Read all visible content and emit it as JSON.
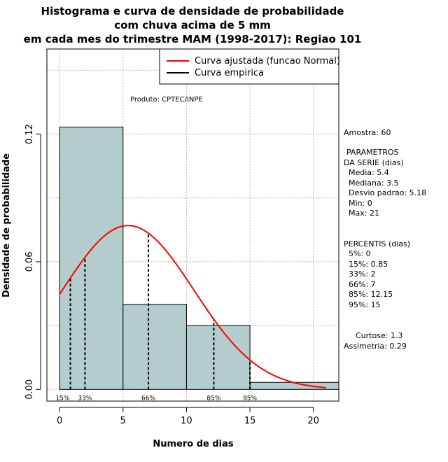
{
  "chart_data": {
    "type": "bar",
    "title_lines": [
      "Histograma e curva de densidade de probabilidade",
      "com chuva acima de 5 mm",
      "em cada mes do trimestre MAM (1998-2017): Regiao 101"
    ],
    "xlabel": "Numero de dias",
    "ylabel": "Densidade de probabilidade",
    "xlim": [
      -1,
      22
    ],
    "ylim": [
      -0.0055,
      0.16
    ],
    "x_ticks": [
      0,
      5,
      10,
      15,
      20
    ],
    "y_ticks": [
      0.0,
      0.06,
      0.12
    ],
    "y_tick_labels": [
      "0.00",
      "0.06",
      "0.12"
    ],
    "grid": true,
    "bins": [
      {
        "start": 0,
        "end": 5,
        "density": 0.1233
      },
      {
        "start": 5,
        "end": 10,
        "density": 0.04
      },
      {
        "start": 10,
        "end": 15,
        "density": 0.03
      },
      {
        "start": 15,
        "end": 22,
        "density": 0.0033
      }
    ],
    "bar_color": "#b5cccc",
    "series": [
      {
        "name": "Curva ajustada (funcao Normal)",
        "color": "#ff0000",
        "distribution": "normal",
        "mean": 5.4,
        "sd": 5.18,
        "x_range": [
          0,
          21
        ]
      },
      {
        "name": "Curva empirica",
        "color": "#000000"
      }
    ],
    "percentile_lines": [
      {
        "label": "15%",
        "x": 0.85
      },
      {
        "label": "33%",
        "x": 2
      },
      {
        "label": "66%",
        "x": 7
      },
      {
        "label": "85%",
        "x": 12.15
      },
      {
        "label": "95%",
        "x": 15
      }
    ],
    "legend_position": "top-right",
    "source_note": "Produto: CPTEC/INPE"
  },
  "stats_panel": {
    "sample": "Amostra: 60",
    "params_title_1": "PARAMETROS",
    "params_title_2": "DA SERIE (dias)",
    "media": "Media: 5.4",
    "mediana": "Mediana: 3.5",
    "desvio": "Desvio padrao: 5.18",
    "min": "Min: 0",
    "max": "Max: 21",
    "percentis_title": "PERCENTIS (dias)",
    "p5": "5%: 0",
    "p15": "15%: 0.85",
    "p33": "33%: 2",
    "p66": "66%: 7",
    "p85": "85%: 12.15",
    "p95": "95%: 15",
    "curtose": "Curtose: 1.3",
    "assimetria": "Assimetria: 0.29"
  }
}
